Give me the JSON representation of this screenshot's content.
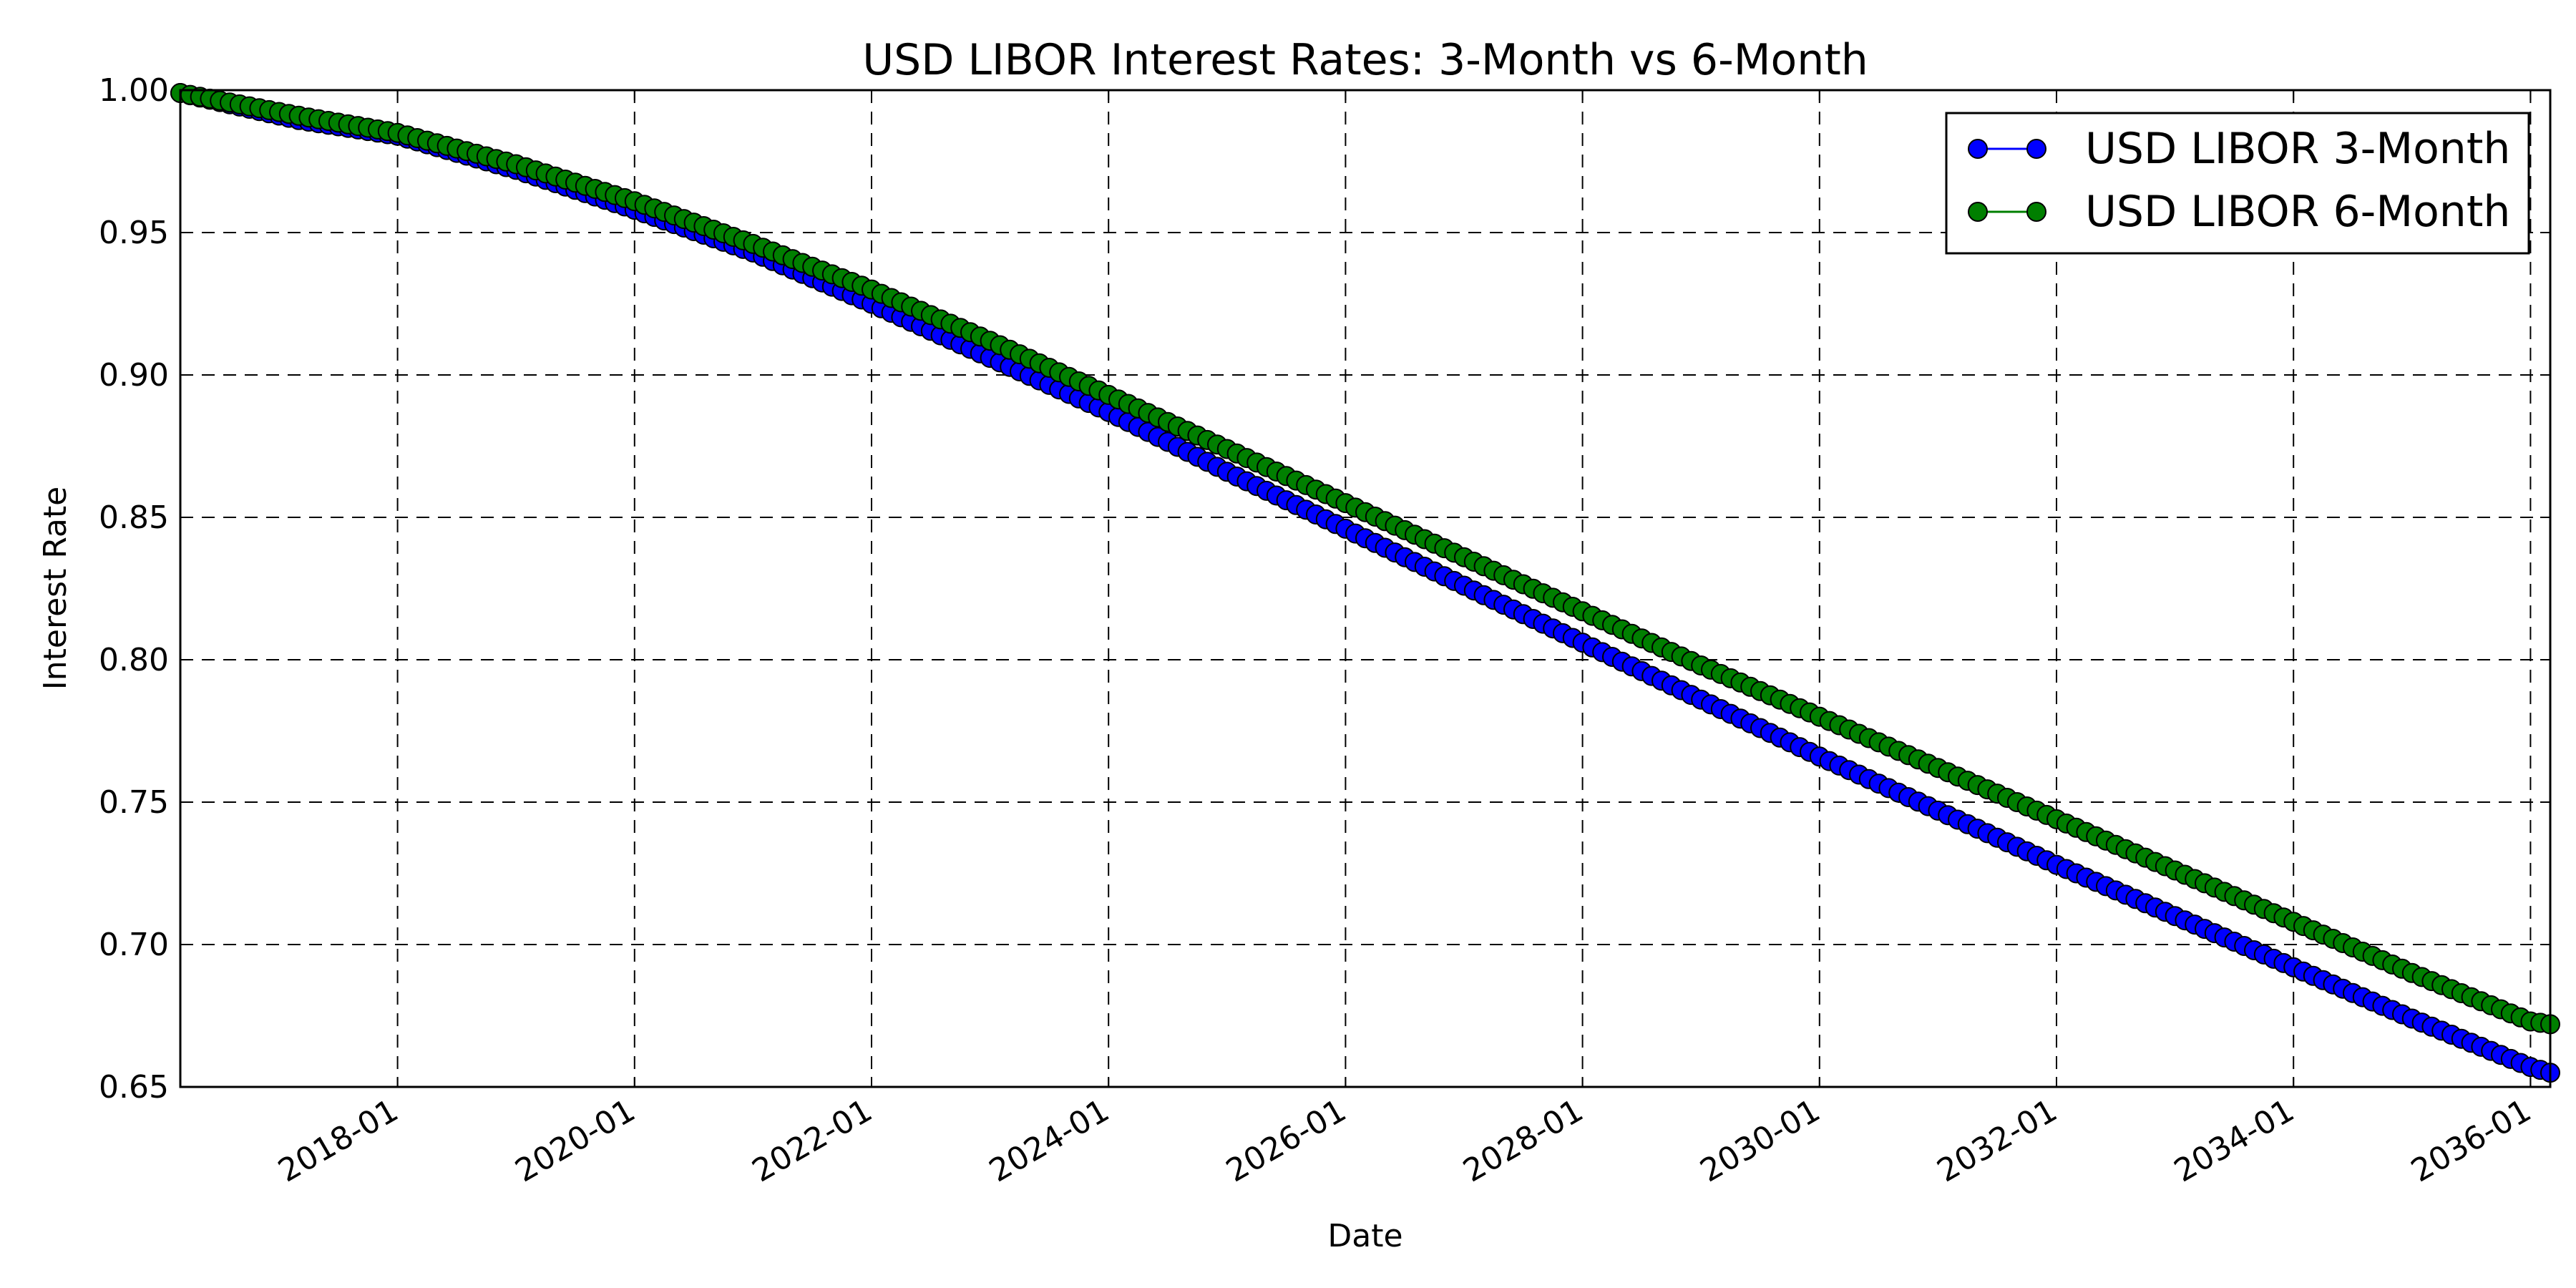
{
  "chart_data": {
    "type": "line",
    "title": "USD LIBOR Interest Rates: 3-Month vs 6-Month",
    "xlabel": "Date",
    "ylabel": "Interest Rate",
    "xlim": [
      "2016-03",
      "2036-03"
    ],
    "ylim": [
      0.65,
      1.0
    ],
    "x_ticks": [
      "2018-01",
      "2020-01",
      "2022-01",
      "2024-01",
      "2026-01",
      "2028-01",
      "2030-01",
      "2032-01",
      "2034-01",
      "2036-01"
    ],
    "y_ticks": [
      "0.65",
      "0.70",
      "0.75",
      "0.80",
      "0.85",
      "0.90",
      "0.95",
      "1.00"
    ],
    "grid": true,
    "legend_position": "top-right",
    "marker": "circle",
    "frequency": "monthly",
    "series": [
      {
        "name": "USD LIBOR 3-Month",
        "color": "#0000ff",
        "anchors": [
          [
            "2016-03",
            0.999
          ],
          [
            "2017-03",
            0.9895
          ],
          [
            "2018-01",
            0.984
          ],
          [
            "2019-01",
            0.972
          ],
          [
            "2020-01",
            0.958
          ],
          [
            "2021-01",
            0.943
          ],
          [
            "2022-01",
            0.925
          ],
          [
            "2023-01",
            0.906
          ],
          [
            "2024-01",
            0.887
          ],
          [
            "2025-01",
            0.866
          ],
          [
            "2026-01",
            0.846
          ],
          [
            "2027-01",
            0.826
          ],
          [
            "2028-01",
            0.806
          ],
          [
            "2029-01",
            0.786
          ],
          [
            "2030-01",
            0.766
          ],
          [
            "2031-01",
            0.747
          ],
          [
            "2032-01",
            0.728
          ],
          [
            "2033-01",
            0.71
          ],
          [
            "2034-01",
            0.692
          ],
          [
            "2035-01",
            0.674
          ],
          [
            "2036-01",
            0.657
          ],
          [
            "2036-03",
            0.655
          ]
        ]
      },
      {
        "name": "USD LIBOR 6-Month",
        "color": "#007f00",
        "anchors": [
          [
            "2016-03",
            0.999
          ],
          [
            "2017-03",
            0.991
          ],
          [
            "2018-01",
            0.985
          ],
          [
            "2019-01",
            0.974
          ],
          [
            "2020-01",
            0.961
          ],
          [
            "2021-01",
            0.946
          ],
          [
            "2022-01",
            0.93
          ],
          [
            "2023-01",
            0.912
          ],
          [
            "2024-01",
            0.893
          ],
          [
            "2025-01",
            0.874
          ],
          [
            "2026-01",
            0.855
          ],
          [
            "2027-01",
            0.836
          ],
          [
            "2028-01",
            0.817
          ],
          [
            "2029-01",
            0.798
          ],
          [
            "2030-01",
            0.78
          ],
          [
            "2031-01",
            0.762
          ],
          [
            "2032-01",
            0.744
          ],
          [
            "2033-01",
            0.726
          ],
          [
            "2034-01",
            0.708
          ],
          [
            "2035-01",
            0.69
          ],
          [
            "2036-01",
            0.673
          ],
          [
            "2036-03",
            0.672
          ]
        ]
      }
    ]
  }
}
